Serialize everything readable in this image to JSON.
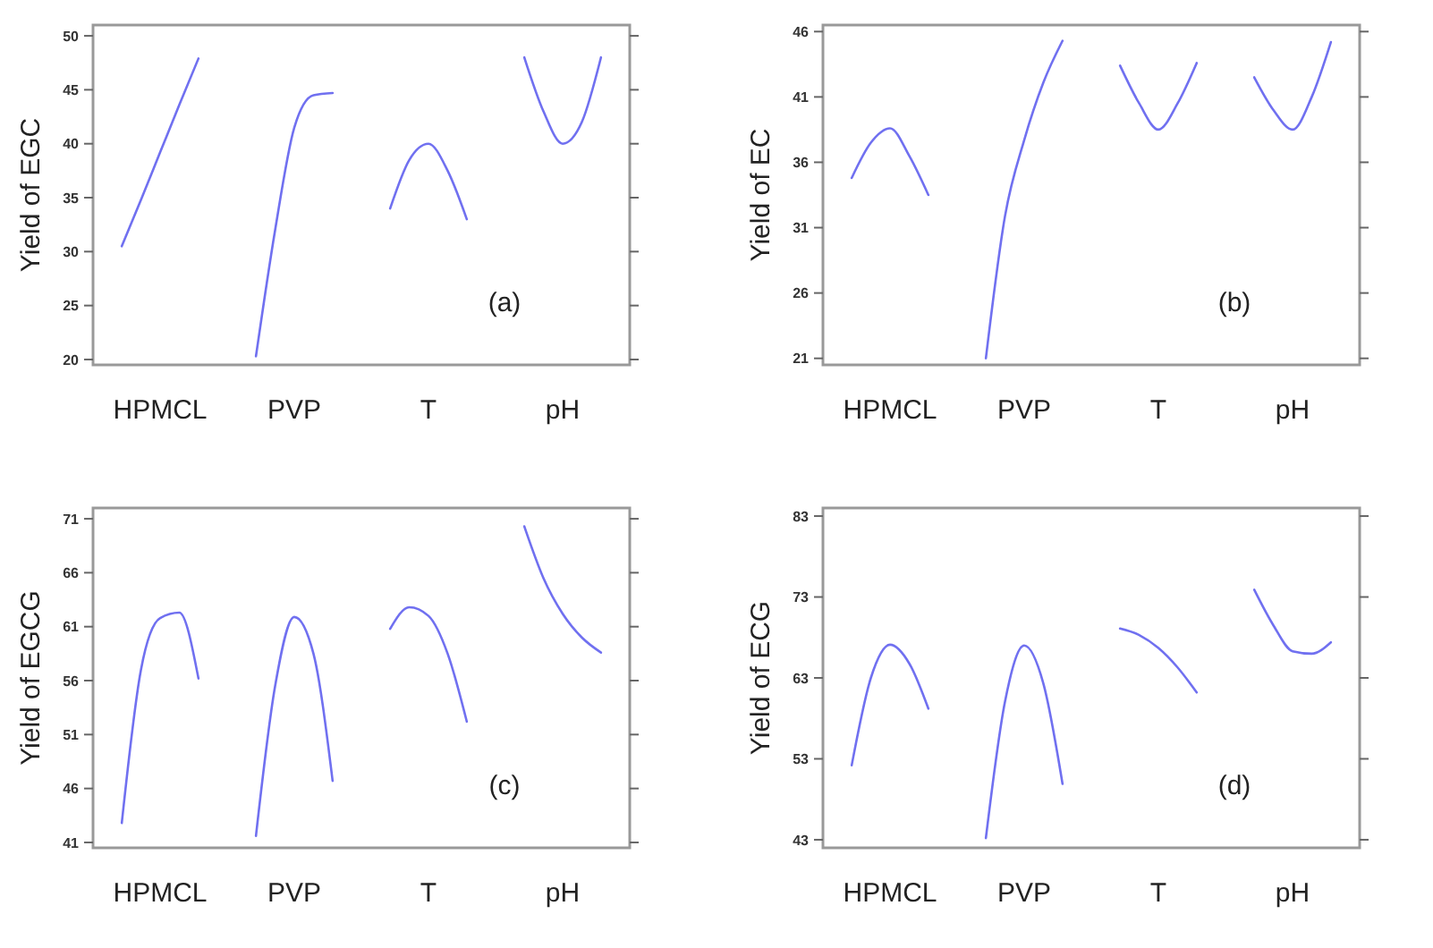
{
  "chart_data": [
    {
      "type": "line",
      "ylabel": "Yield of EGC",
      "annotations": [
        "(a)"
      ],
      "ylim": [
        19.5,
        51
      ],
      "yticks": [
        20,
        25,
        30,
        35,
        40,
        45,
        50
      ],
      "categories": [
        null,
        null,
        "HPMCL",
        null,
        null,
        null,
        null,
        null,
        null,
        "PVP",
        null,
        null,
        null,
        null,
        null,
        null,
        "T",
        null,
        null,
        null,
        null,
        null,
        null,
        "pH",
        null,
        null
      ],
      "series": [
        {
          "color": "#7070f0",
          "values": [
            30.5,
            34.8,
            39.2,
            43.6,
            47.9,
            null,
            null,
            null,
            null,
            null,
            null,
            null,
            null,
            null,
            null,
            null,
            null,
            null,
            null,
            null,
            null,
            null,
            null,
            null,
            null,
            null
          ]
        },
        {
          "color": "#7070f0",
          "values": [
            null,
            null,
            null,
            null,
            null,
            null,
            null,
            20.3,
            32,
            41.5,
            44.5,
            44.7,
            null,
            null,
            null,
            null,
            null,
            null,
            null,
            null,
            null,
            null,
            null,
            null,
            null,
            null
          ]
        },
        {
          "color": "#7070f0",
          "values": [
            null,
            null,
            null,
            null,
            null,
            null,
            null,
            null,
            null,
            null,
            null,
            null,
            null,
            null,
            34,
            38.5,
            40,
            37.5,
            33,
            null,
            null,
            null,
            null,
            null,
            null,
            null
          ]
        },
        {
          "color": "#7070f0",
          "values": [
            null,
            null,
            null,
            null,
            null,
            null,
            null,
            null,
            null,
            null,
            null,
            null,
            null,
            null,
            null,
            null,
            null,
            null,
            null,
            null,
            null,
            48,
            43,
            40,
            42,
            48
          ]
        }
      ]
    },
    {
      "type": "line",
      "ylabel": "Yield of EC",
      "annotations": [
        "(b)"
      ],
      "ylim": [
        20.5,
        46.5
      ],
      "yticks": [
        21,
        26,
        31,
        36,
        41,
        46
      ],
      "categories": [
        null,
        null,
        "HPMCL",
        null,
        null,
        null,
        null,
        null,
        null,
        "PVP",
        null,
        null,
        null,
        null,
        null,
        null,
        "T",
        null,
        null,
        null,
        null,
        null,
        null,
        "pH",
        null,
        null
      ],
      "series": [
        {
          "color": "#7070f0",
          "values": [
            34.8,
            37.5,
            38.6,
            36.5,
            33.5,
            null,
            null,
            null,
            null,
            null,
            null,
            null,
            null,
            null,
            null,
            null,
            null,
            null,
            null,
            null,
            null,
            null,
            null,
            null,
            null,
            null
          ]
        },
        {
          "color": "#7070f0",
          "values": [
            null,
            null,
            null,
            null,
            null,
            null,
            null,
            21,
            31.9,
            37.7,
            42.1,
            45.3,
            null,
            null,
            null,
            null,
            null,
            null,
            null,
            null,
            null,
            null,
            null,
            null,
            null,
            null
          ]
        },
        {
          "color": "#7070f0",
          "values": [
            null,
            null,
            null,
            null,
            null,
            null,
            null,
            null,
            null,
            null,
            null,
            null,
            null,
            null,
            43.4,
            40.5,
            38.5,
            40.5,
            43.6,
            null,
            null,
            null,
            null,
            null,
            null,
            null
          ]
        },
        {
          "color": "#7070f0",
          "values": [
            null,
            null,
            null,
            null,
            null,
            null,
            null,
            null,
            null,
            null,
            null,
            null,
            null,
            null,
            null,
            null,
            null,
            null,
            null,
            null,
            null,
            42.5,
            40,
            38.5,
            41,
            45.2
          ]
        }
      ]
    },
    {
      "type": "line",
      "ylabel": "Yield of EGCG",
      "annotations": [
        "(c)"
      ],
      "ylim": [
        40.5,
        72
      ],
      "yticks": [
        41,
        46,
        51,
        56,
        61,
        66,
        71
      ],
      "categories": [
        null,
        null,
        "HPMCL",
        null,
        null,
        null,
        null,
        null,
        null,
        "PVP",
        null,
        null,
        null,
        null,
        null,
        null,
        "T",
        null,
        null,
        null,
        null,
        null,
        null,
        "pH",
        null,
        null
      ],
      "series": [
        {
          "color": "#7070f0",
          "values": [
            42.8,
            57,
            61.8,
            62.3,
            56.2,
            null,
            null,
            null,
            null,
            null,
            null,
            null,
            null,
            null,
            null,
            null,
            null,
            null,
            null,
            null,
            null,
            null,
            null,
            null,
            null,
            null
          ]
        },
        {
          "color": "#7070f0",
          "values": [
            null,
            null,
            null,
            null,
            null,
            null,
            null,
            41.6,
            55.5,
            61.9,
            58.5,
            46.7,
            null,
            null,
            null,
            null,
            null,
            null,
            null,
            null,
            null,
            null,
            null,
            null,
            null,
            null
          ]
        },
        {
          "color": "#7070f0",
          "values": [
            null,
            null,
            null,
            null,
            null,
            null,
            null,
            null,
            null,
            null,
            null,
            null,
            null,
            null,
            60.8,
            62.8,
            62,
            58.5,
            52.2,
            null,
            null,
            null,
            null,
            null,
            null,
            null
          ]
        },
        {
          "color": "#7070f0",
          "values": [
            null,
            null,
            null,
            null,
            null,
            null,
            null,
            null,
            null,
            null,
            null,
            null,
            null,
            null,
            null,
            null,
            null,
            null,
            null,
            null,
            null,
            70.3,
            65.5,
            62.2,
            60,
            58.6
          ]
        }
      ]
    },
    {
      "type": "line",
      "ylabel": "Yield of ECG",
      "annotations": [
        "(d)"
      ],
      "ylim": [
        42,
        84
      ],
      "yticks": [
        43,
        53,
        63,
        73,
        83
      ],
      "categories": [
        null,
        null,
        "HPMCL",
        null,
        null,
        null,
        null,
        null,
        null,
        "PVP",
        null,
        null,
        null,
        null,
        null,
        null,
        "T",
        null,
        null,
        null,
        null,
        null,
        null,
        "pH",
        null,
        null
      ],
      "series": [
        {
          "color": "#7070f0",
          "values": [
            52.2,
            63,
            67.1,
            64.8,
            59.2,
            null,
            null,
            null,
            null,
            null,
            null,
            null,
            null,
            null,
            null,
            null,
            null,
            null,
            null,
            null,
            null,
            null,
            null,
            null,
            null,
            null
          ]
        },
        {
          "color": "#7070f0",
          "values": [
            null,
            null,
            null,
            null,
            null,
            null,
            null,
            43.2,
            60.1,
            67,
            62.3,
            49.9,
            null,
            null,
            null,
            null,
            null,
            null,
            null,
            null,
            null,
            null,
            null,
            null,
            null,
            null
          ]
        },
        {
          "color": "#7070f0",
          "values": [
            null,
            null,
            null,
            null,
            null,
            null,
            null,
            null,
            null,
            null,
            null,
            null,
            null,
            null,
            69.1,
            68.3,
            66.7,
            64.3,
            61.2,
            null,
            null,
            null,
            null,
            null,
            null,
            null
          ]
        },
        {
          "color": "#7070f0",
          "values": [
            null,
            null,
            null,
            null,
            null,
            null,
            null,
            null,
            null,
            null,
            null,
            null,
            null,
            null,
            null,
            null,
            null,
            null,
            null,
            null,
            null,
            73.9,
            69.5,
            66.3,
            66,
            67.4
          ]
        }
      ]
    }
  ]
}
